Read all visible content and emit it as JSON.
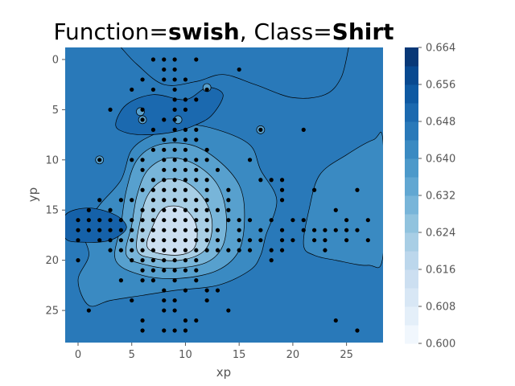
{
  "title": {
    "part1": "Function=",
    "part2": "swish",
    "part3": ", Class=",
    "part4": "Shirt"
  },
  "chart_data": {
    "type": "heatmap",
    "subtype": "filled-contour with scatter overlay",
    "xlabel": "xp",
    "ylabel": "yp",
    "xlim": [
      -1.2,
      28.4
    ],
    "ylim": [
      28.2,
      -1.2
    ],
    "y_inverted": true,
    "x_ticks": [
      0,
      5,
      10,
      15,
      20,
      25
    ],
    "y_ticks": [
      0,
      5,
      10,
      15,
      20,
      25
    ],
    "colormap": "Blues",
    "colorbar": {
      "min": 0.6,
      "max": 0.664,
      "step": 0.004,
      "tick_labels": [
        "0.600",
        "0.608",
        "0.616",
        "0.624",
        "0.632",
        "0.640",
        "0.648",
        "0.656",
        "0.664"
      ],
      "tick_values": [
        0.6,
        0.608,
        0.616,
        0.624,
        0.632,
        0.64,
        0.648,
        0.656,
        0.664
      ]
    },
    "background_level": 0.646,
    "contour_regions": [
      {
        "level": 0.642,
        "points": [
          [
            1,
            24.5
          ],
          [
            0,
            22
          ],
          [
            1,
            19.5
          ],
          [
            0.5,
            17
          ],
          [
            2,
            14.5
          ],
          [
            4,
            12
          ],
          [
            5,
            9
          ],
          [
            7,
            7.5
          ],
          [
            10,
            6.5
          ],
          [
            13,
            7
          ],
          [
            16,
            8.5
          ],
          [
            17,
            11
          ],
          [
            18.5,
            14
          ],
          [
            17.5,
            17.5
          ],
          [
            17,
            19.5
          ],
          [
            16,
            21
          ],
          [
            13,
            22.5
          ],
          [
            9,
            23
          ],
          [
            6,
            23.5
          ],
          [
            3,
            24
          ]
        ]
      },
      {
        "level": 0.642,
        "points": [
          [
            21,
            18.5
          ],
          [
            21.5,
            15
          ],
          [
            22.5,
            11.5
          ],
          [
            25,
            9.5
          ],
          [
            27.5,
            8
          ],
          [
            28.4,
            8.2
          ],
          [
            28.4,
            19.5
          ],
          [
            27,
            20.5
          ],
          [
            24,
            20
          ],
          [
            22,
            19.5
          ]
        ]
      },
      {
        "level": 0.636,
        "points": [
          [
            3.5,
            20
          ],
          [
            4,
            16.5
          ],
          [
            4.5,
            13
          ],
          [
            5.5,
            10
          ],
          [
            7.5,
            8.5
          ],
          [
            10.5,
            8.5
          ],
          [
            13,
            10
          ],
          [
            15,
            12.5
          ],
          [
            15.5,
            15.5
          ],
          [
            15,
            19
          ],
          [
            13,
            21
          ],
          [
            9.5,
            21.8
          ],
          [
            6,
            21.5
          ]
        ]
      },
      {
        "level": 0.63,
        "points": [
          [
            4.5,
            19.5
          ],
          [
            5,
            16.5
          ],
          [
            5.5,
            13.5
          ],
          [
            6.5,
            11
          ],
          [
            8.5,
            9.8
          ],
          [
            11,
            10.5
          ],
          [
            13,
            12.5
          ],
          [
            13.8,
            15.5
          ],
          [
            13.5,
            18.5
          ],
          [
            12,
            20.2
          ],
          [
            9,
            20.8
          ],
          [
            6.5,
            20.5
          ]
        ]
      },
      {
        "level": 0.622,
        "points": [
          [
            5.5,
            19
          ],
          [
            5.8,
            16
          ],
          [
            6.5,
            13.5
          ],
          [
            8,
            12
          ],
          [
            10,
            12.2
          ],
          [
            11.8,
            14
          ],
          [
            12.5,
            16.5
          ],
          [
            11.8,
            19
          ],
          [
            9.5,
            20
          ],
          [
            7,
            19.8
          ]
        ]
      },
      {
        "level": 0.614,
        "points": [
          [
            6.5,
            18.8
          ],
          [
            7,
            16.5
          ],
          [
            8,
            14.8
          ],
          [
            9.8,
            14.8
          ],
          [
            11,
            16.5
          ],
          [
            10.8,
            18.8
          ],
          [
            9,
            19.5
          ]
        ]
      },
      {
        "level": 0.65,
        "points": [
          [
            3.5,
            6.5
          ],
          [
            4.5,
            4.5
          ],
          [
            7,
            3.5
          ],
          [
            10,
            4
          ],
          [
            12,
            2.8
          ],
          [
            13.5,
            3.5
          ],
          [
            12.5,
            5.5
          ],
          [
            11,
            6.5
          ],
          [
            9,
            7.2
          ],
          [
            6.5,
            7.5
          ],
          [
            4.5,
            7.3
          ]
        ]
      },
      {
        "level": 0.652,
        "points": [
          [
            -1.2,
            17.8
          ],
          [
            -1.2,
            15.5
          ],
          [
            1,
            14.8
          ],
          [
            3.5,
            15.5
          ],
          [
            4.5,
            16.8
          ],
          [
            3,
            18
          ],
          [
            0.5,
            18.2
          ]
        ]
      }
    ],
    "contour_lines": [
      {
        "closed": false,
        "points": [
          [
            4,
            -1.2
          ],
          [
            5.5,
            0.5
          ],
          [
            8,
            2.5
          ],
          [
            11,
            2.2
          ],
          [
            13.5,
            1.5
          ],
          [
            16.5,
            2.5
          ],
          [
            20,
            3.8
          ],
          [
            23,
            3.5
          ],
          [
            24.5,
            1.8
          ],
          [
            25.2,
            -1.2
          ]
        ]
      }
    ],
    "small_rings": [
      [
        5.8,
        5.2
      ],
      [
        12,
        2.8
      ],
      [
        17,
        7
      ],
      [
        2,
        10
      ],
      [
        9.3,
        6
      ],
      [
        6,
        6
      ]
    ],
    "points": [
      [
        7,
        0
      ],
      [
        8,
        0
      ],
      [
        9,
        0
      ],
      [
        11,
        0
      ],
      [
        15,
        1
      ],
      [
        8,
        1
      ],
      [
        9,
        1
      ],
      [
        6,
        2
      ],
      [
        8,
        2
      ],
      [
        9,
        2
      ],
      [
        10,
        2
      ],
      [
        5,
        3
      ],
      [
        7,
        3
      ],
      [
        9,
        3
      ],
      [
        12,
        3
      ],
      [
        9,
        4
      ],
      [
        10,
        4
      ],
      [
        11,
        4
      ],
      [
        3,
        5
      ],
      [
        6,
        5
      ],
      [
        9,
        5
      ],
      [
        10,
        5
      ],
      [
        6,
        6
      ],
      [
        8,
        6
      ],
      [
        9,
        6
      ],
      [
        7,
        7
      ],
      [
        9,
        7
      ],
      [
        10,
        7
      ],
      [
        11,
        7
      ],
      [
        17,
        7
      ],
      [
        21,
        7
      ],
      [
        8,
        8
      ],
      [
        9,
        8
      ],
      [
        10,
        8
      ],
      [
        11,
        8
      ],
      [
        7,
        9
      ],
      [
        8,
        9
      ],
      [
        9,
        9
      ],
      [
        10,
        9
      ],
      [
        12,
        9
      ],
      [
        2,
        10
      ],
      [
        5,
        10
      ],
      [
        6,
        10
      ],
      [
        8,
        10
      ],
      [
        9,
        10
      ],
      [
        10,
        10
      ],
      [
        11,
        10
      ],
      [
        12,
        10
      ],
      [
        16,
        10
      ],
      [
        6,
        11
      ],
      [
        8,
        11
      ],
      [
        9,
        11
      ],
      [
        10,
        11
      ],
      [
        11,
        11
      ],
      [
        13,
        11
      ],
      [
        7,
        12
      ],
      [
        8,
        12
      ],
      [
        9,
        12
      ],
      [
        10,
        12
      ],
      [
        11,
        12
      ],
      [
        12,
        12
      ],
      [
        17,
        12
      ],
      [
        18,
        12
      ],
      [
        19,
        12
      ],
      [
        6,
        13
      ],
      [
        7,
        13
      ],
      [
        8,
        13
      ],
      [
        9,
        13
      ],
      [
        10,
        13
      ],
      [
        12,
        13
      ],
      [
        14,
        13
      ],
      [
        19,
        13
      ],
      [
        22,
        13
      ],
      [
        26,
        13
      ],
      [
        2,
        14
      ],
      [
        4,
        14
      ],
      [
        5,
        14
      ],
      [
        7,
        14
      ],
      [
        8,
        14
      ],
      [
        9,
        14
      ],
      [
        10,
        14
      ],
      [
        11,
        14
      ],
      [
        12,
        14
      ],
      [
        14,
        14
      ],
      [
        19,
        14
      ],
      [
        1,
        15
      ],
      [
        3,
        15
      ],
      [
        6,
        15
      ],
      [
        7,
        15
      ],
      [
        8,
        15
      ],
      [
        9,
        15
      ],
      [
        10,
        15
      ],
      [
        11,
        15
      ],
      [
        12,
        15
      ],
      [
        13,
        15
      ],
      [
        14,
        15
      ],
      [
        24,
        15
      ],
      [
        0,
        16
      ],
      [
        1,
        16
      ],
      [
        2,
        16
      ],
      [
        3,
        16
      ],
      [
        4,
        16
      ],
      [
        5,
        16
      ],
      [
        6,
        16
      ],
      [
        7,
        16
      ],
      [
        8,
        16
      ],
      [
        9,
        16
      ],
      [
        10,
        16
      ],
      [
        11,
        16
      ],
      [
        12,
        16
      ],
      [
        14,
        16
      ],
      [
        15,
        16
      ],
      [
        16,
        16
      ],
      [
        18,
        16
      ],
      [
        20,
        16
      ],
      [
        21,
        16
      ],
      [
        25,
        16
      ],
      [
        27,
        16
      ],
      [
        0,
        17
      ],
      [
        1,
        17
      ],
      [
        2,
        17
      ],
      [
        3,
        17
      ],
      [
        4,
        17
      ],
      [
        5,
        17
      ],
      [
        6,
        17
      ],
      [
        7,
        17
      ],
      [
        8,
        17
      ],
      [
        9,
        17
      ],
      [
        10,
        17
      ],
      [
        11,
        17
      ],
      [
        12,
        17
      ],
      [
        13,
        17
      ],
      [
        15,
        17
      ],
      [
        17,
        17
      ],
      [
        19,
        17
      ],
      [
        21,
        17
      ],
      [
        22,
        17
      ],
      [
        23,
        17
      ],
      [
        24,
        17
      ],
      [
        25,
        17
      ],
      [
        26,
        17
      ],
      [
        0,
        18
      ],
      [
        2,
        18
      ],
      [
        3,
        18
      ],
      [
        4,
        18
      ],
      [
        5,
        18
      ],
      [
        6,
        18
      ],
      [
        7,
        18
      ],
      [
        8,
        18
      ],
      [
        9,
        18
      ],
      [
        10,
        18
      ],
      [
        11,
        18
      ],
      [
        12,
        18
      ],
      [
        13,
        18
      ],
      [
        15,
        18
      ],
      [
        16,
        18
      ],
      [
        17,
        18
      ],
      [
        19,
        18
      ],
      [
        20,
        18
      ],
      [
        22,
        18
      ],
      [
        23,
        18
      ],
      [
        25,
        18
      ],
      [
        27,
        18
      ],
      [
        3,
        19
      ],
      [
        4,
        19
      ],
      [
        5,
        19
      ],
      [
        6,
        19
      ],
      [
        7,
        19
      ],
      [
        8,
        19
      ],
      [
        9,
        19
      ],
      [
        10,
        19
      ],
      [
        11,
        19
      ],
      [
        12,
        19
      ],
      [
        13,
        19
      ],
      [
        14,
        19
      ],
      [
        15,
        19
      ],
      [
        16,
        19
      ],
      [
        18,
        19
      ],
      [
        19,
        19
      ],
      [
        23,
        19
      ],
      [
        0,
        20
      ],
      [
        5,
        20
      ],
      [
        6,
        20
      ],
      [
        7,
        20
      ],
      [
        8,
        20
      ],
      [
        9,
        20
      ],
      [
        10,
        20
      ],
      [
        11,
        20
      ],
      [
        18,
        20
      ],
      [
        6,
        21
      ],
      [
        7,
        21
      ],
      [
        8,
        21
      ],
      [
        9,
        21
      ],
      [
        10,
        21
      ],
      [
        11,
        21
      ],
      [
        4,
        22
      ],
      [
        6,
        22
      ],
      [
        7,
        22
      ],
      [
        9,
        22
      ],
      [
        11,
        22
      ],
      [
        8,
        23
      ],
      [
        10,
        23
      ],
      [
        12,
        23
      ],
      [
        13,
        23
      ],
      [
        5,
        24
      ],
      [
        8,
        24
      ],
      [
        9,
        24
      ],
      [
        12,
        24
      ],
      [
        1,
        25
      ],
      [
        8,
        25
      ],
      [
        9,
        25
      ],
      [
        14,
        25
      ],
      [
        6,
        26
      ],
      [
        10,
        26
      ],
      [
        11,
        26
      ],
      [
        24,
        26
      ],
      [
        6,
        27
      ],
      [
        8,
        27
      ],
      [
        9,
        27
      ],
      [
        10,
        27
      ],
      [
        26,
        27
      ]
    ]
  }
}
